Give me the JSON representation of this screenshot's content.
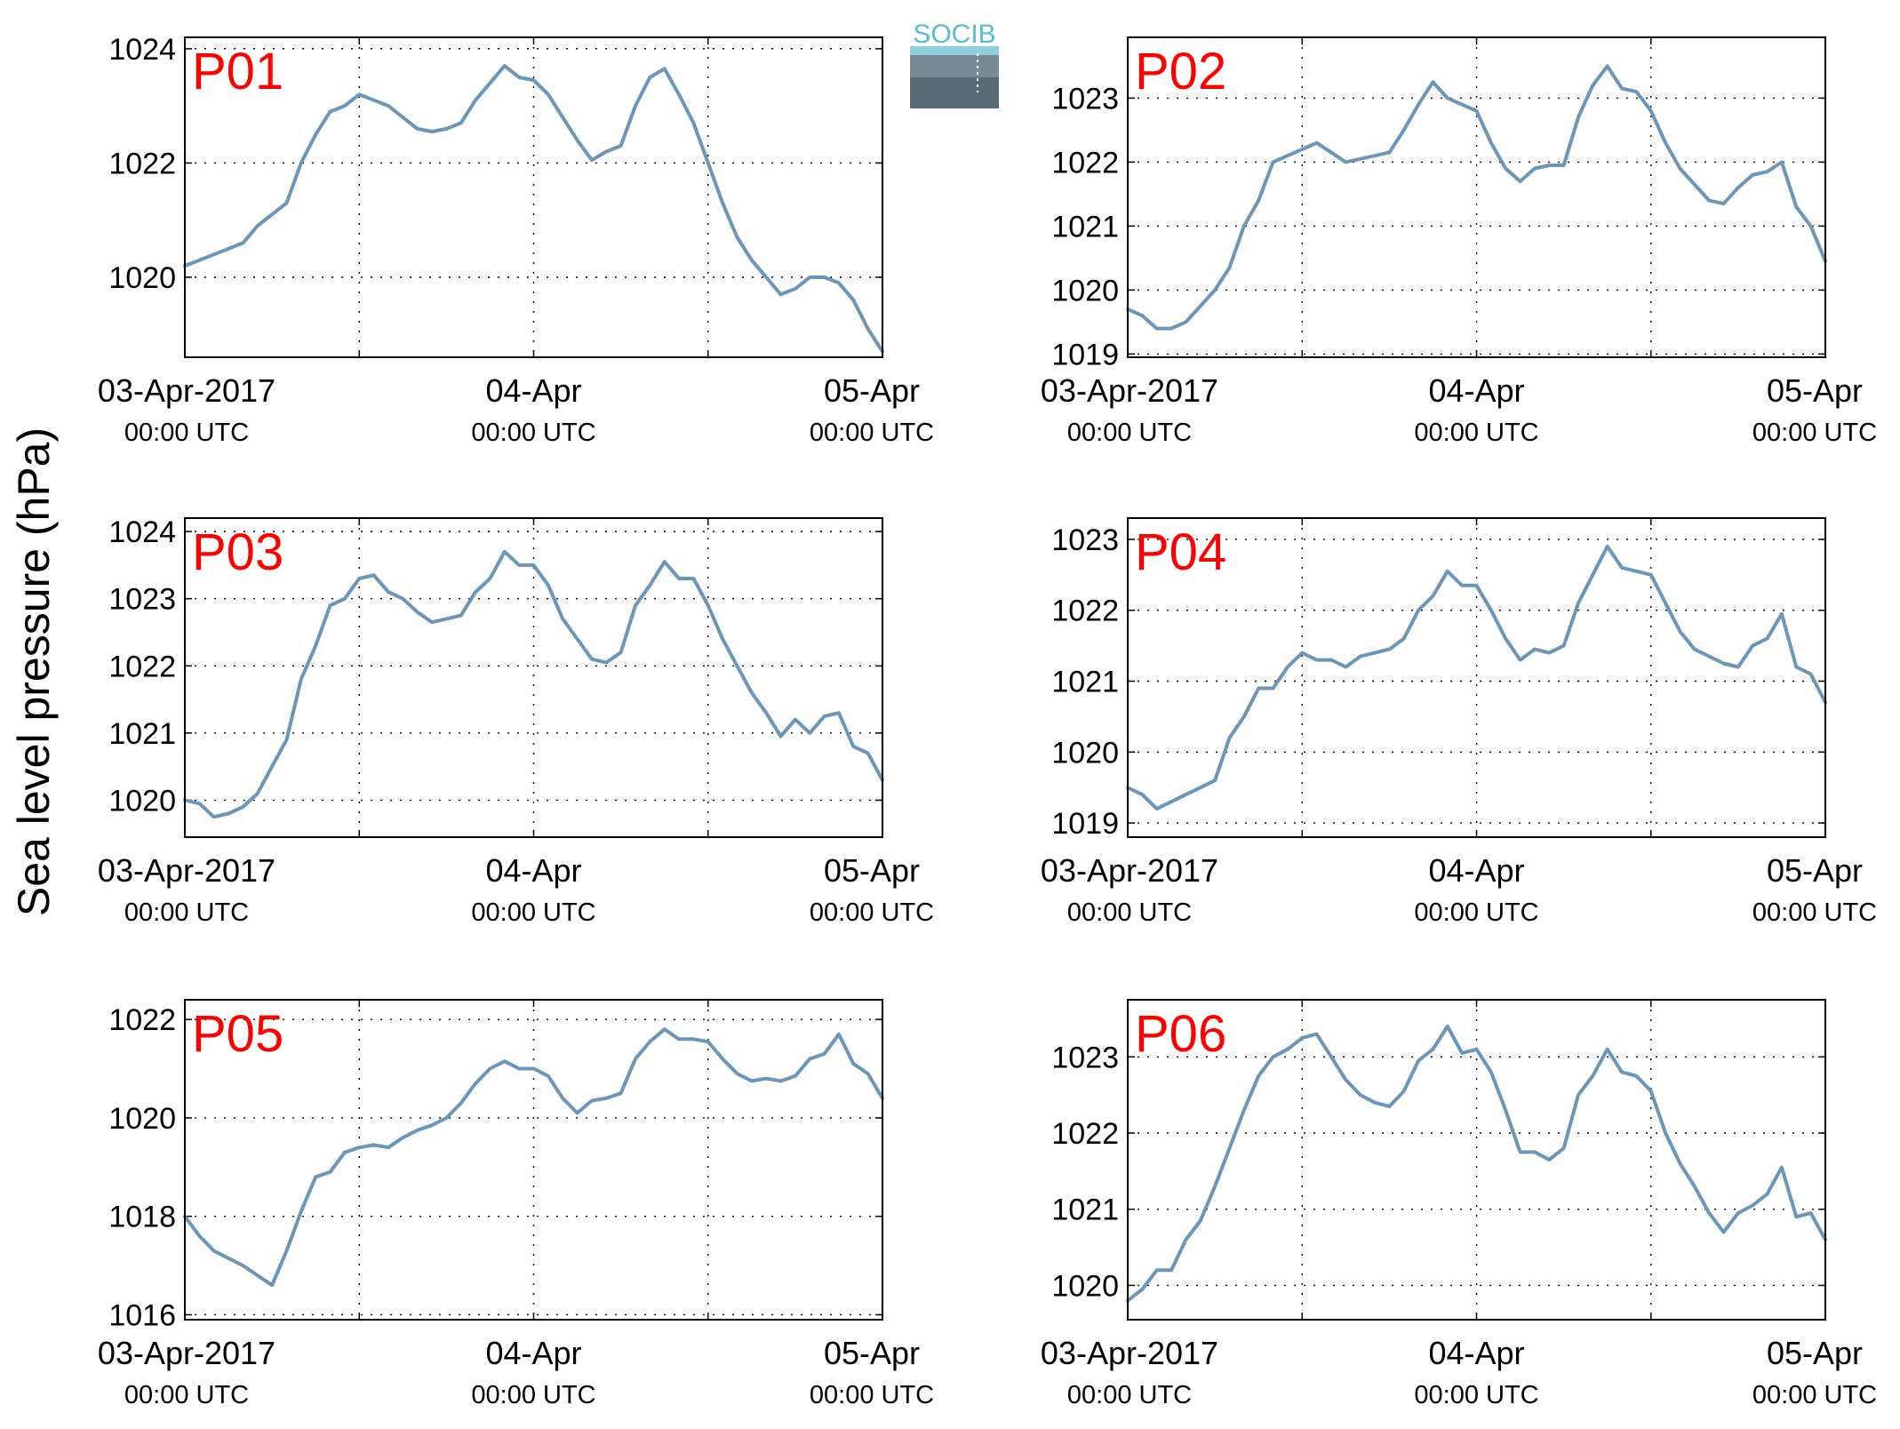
{
  "figure": {
    "ylabel": "Sea level pressure (hPa)",
    "logo_text": "SOCIB",
    "line_color": "#6b96b8",
    "title_color": "#ff0000"
  },
  "x_axis": {
    "ticks": [
      {
        "date": "03-Apr-2017",
        "time": "00:00 UTC"
      },
      {
        "date": "04-Apr",
        "time": "00:00 UTC"
      },
      {
        "date": "05-Apr",
        "time": "00:00 UTC"
      }
    ],
    "xlim_hours": [
      0,
      48
    ],
    "grid_hours": [
      12,
      24,
      36
    ]
  },
  "chart_data": [
    {
      "type": "line",
      "title": "P01",
      "xlabel": "",
      "ylabel": "Sea level pressure (hPa)",
      "ylim": [
        1018.6,
        1024.2
      ],
      "yticks": [
        1020,
        1022,
        1024
      ],
      "grid": true,
      "series": [
        {
          "x": [
            0,
            1,
            2,
            3,
            4,
            5,
            6,
            7,
            8,
            9,
            10,
            11,
            12,
            13,
            14,
            15,
            16,
            17,
            18,
            19,
            20,
            21,
            22,
            23,
            24,
            25,
            26,
            27,
            28,
            29,
            30,
            31,
            32,
            33,
            34,
            35,
            36,
            37,
            38,
            39,
            40,
            41,
            42,
            43,
            44,
            45,
            46,
            47,
            48
          ],
          "y": [
            1020.2,
            1020.3,
            1020.4,
            1020.5,
            1020.6,
            1020.9,
            1021.1,
            1021.3,
            1022.0,
            1022.5,
            1022.9,
            1023.0,
            1023.2,
            1023.1,
            1023.0,
            1022.8,
            1022.6,
            1022.55,
            1022.6,
            1022.7,
            1023.1,
            1023.4,
            1023.7,
            1023.5,
            1023.45,
            1023.2,
            1022.8,
            1022.4,
            1022.05,
            1022.2,
            1022.3,
            1023.0,
            1023.5,
            1023.65,
            1023.2,
            1022.7,
            1022.0,
            1021.3,
            1020.7,
            1020.3,
            1020.0,
            1019.7,
            1019.8,
            1020.0,
            1020.0,
            1019.9,
            1019.6,
            1019.1,
            1018.7
          ]
        }
      ]
    },
    {
      "type": "line",
      "title": "P02",
      "xlabel": "",
      "ylabel": "Sea level pressure (hPa)",
      "ylim": [
        1018.95,
        1023.95
      ],
      "yticks": [
        1019,
        1020,
        1021,
        1022,
        1023
      ],
      "grid": true,
      "series": [
        {
          "x": [
            0,
            1,
            2,
            3,
            4,
            5,
            6,
            7,
            8,
            9,
            10,
            11,
            12,
            13,
            14,
            15,
            16,
            17,
            18,
            19,
            20,
            21,
            22,
            23,
            24,
            25,
            26,
            27,
            28,
            29,
            30,
            31,
            32,
            33,
            34,
            35,
            36,
            37,
            38,
            39,
            40,
            41,
            42,
            43,
            44,
            45,
            46,
            47,
            48
          ],
          "y": [
            1019.7,
            1019.6,
            1019.4,
            1019.4,
            1019.5,
            1019.75,
            1020.0,
            1020.35,
            1021.0,
            1021.4,
            1022.0,
            1022.1,
            1022.2,
            1022.3,
            1022.15,
            1022.0,
            1022.05,
            1022.1,
            1022.15,
            1022.5,
            1022.9,
            1023.25,
            1023.0,
            1022.9,
            1022.8,
            1022.3,
            1021.9,
            1021.7,
            1021.9,
            1021.95,
            1021.95,
            1022.7,
            1023.2,
            1023.5,
            1023.15,
            1023.1,
            1022.8,
            1022.3,
            1021.9,
            1021.65,
            1021.4,
            1021.35,
            1021.6,
            1021.8,
            1021.85,
            1022.0,
            1021.3,
            1021.0,
            1020.45
          ]
        }
      ]
    },
    {
      "type": "line",
      "title": "P03",
      "xlabel": "",
      "ylabel": "Sea level pressure (hPa)",
      "ylim": [
        1019.45,
        1024.2
      ],
      "yticks": [
        1020,
        1021,
        1022,
        1023,
        1024
      ],
      "grid": true,
      "series": [
        {
          "x": [
            0,
            1,
            2,
            3,
            4,
            5,
            6,
            7,
            8,
            9,
            10,
            11,
            12,
            13,
            14,
            15,
            16,
            17,
            18,
            19,
            20,
            21,
            22,
            23,
            24,
            25,
            26,
            27,
            28,
            29,
            30,
            31,
            32,
            33,
            34,
            35,
            36,
            37,
            38,
            39,
            40,
            41,
            42,
            43,
            44,
            45,
            46,
            47,
            48
          ],
          "y": [
            1020.0,
            1019.95,
            1019.75,
            1019.8,
            1019.9,
            1020.1,
            1020.5,
            1020.9,
            1021.8,
            1022.3,
            1022.9,
            1023.0,
            1023.3,
            1023.35,
            1023.1,
            1023.0,
            1022.8,
            1022.65,
            1022.7,
            1022.75,
            1023.1,
            1023.3,
            1023.7,
            1023.5,
            1023.5,
            1023.2,
            1022.7,
            1022.4,
            1022.1,
            1022.05,
            1022.2,
            1022.9,
            1023.2,
            1023.55,
            1023.3,
            1023.3,
            1022.9,
            1022.4,
            1022.0,
            1021.6,
            1021.3,
            1020.95,
            1021.2,
            1021.0,
            1021.25,
            1021.3,
            1020.8,
            1020.7,
            1020.3
          ]
        }
      ]
    },
    {
      "type": "line",
      "title": "P04",
      "xlabel": "",
      "ylabel": "Sea level pressure (hPa)",
      "ylim": [
        1018.8,
        1023.3
      ],
      "yticks": [
        1019,
        1020,
        1021,
        1022,
        1023
      ],
      "grid": true,
      "series": [
        {
          "x": [
            0,
            1,
            2,
            3,
            4,
            5,
            6,
            7,
            8,
            9,
            10,
            11,
            12,
            13,
            14,
            15,
            16,
            17,
            18,
            19,
            20,
            21,
            22,
            23,
            24,
            25,
            26,
            27,
            28,
            29,
            30,
            31,
            32,
            33,
            34,
            35,
            36,
            37,
            38,
            39,
            40,
            41,
            42,
            43,
            44,
            45,
            46,
            47,
            48
          ],
          "y": [
            1019.5,
            1019.4,
            1019.2,
            1019.3,
            1019.4,
            1019.5,
            1019.6,
            1020.2,
            1020.5,
            1020.9,
            1020.9,
            1021.2,
            1021.4,
            1021.3,
            1021.3,
            1021.2,
            1021.35,
            1021.4,
            1021.45,
            1021.6,
            1022.0,
            1022.2,
            1022.55,
            1022.35,
            1022.35,
            1022.0,
            1021.6,
            1021.3,
            1021.45,
            1021.4,
            1021.5,
            1022.1,
            1022.5,
            1022.9,
            1022.6,
            1022.55,
            1022.5,
            1022.1,
            1021.7,
            1021.45,
            1021.35,
            1021.25,
            1021.2,
            1021.5,
            1021.6,
            1021.95,
            1021.2,
            1021.1,
            1020.7
          ]
        }
      ]
    },
    {
      "type": "line",
      "title": "P05",
      "xlabel": "",
      "ylabel": "Sea level pressure (hPa)",
      "ylim": [
        1015.9,
        1022.4
      ],
      "yticks": [
        1016,
        1018,
        1020,
        1022
      ],
      "grid": true,
      "series": [
        {
          "x": [
            0,
            1,
            2,
            3,
            4,
            5,
            6,
            7,
            8,
            9,
            10,
            11,
            12,
            13,
            14,
            15,
            16,
            17,
            18,
            19,
            20,
            21,
            22,
            23,
            24,
            25,
            26,
            27,
            28,
            29,
            30,
            31,
            32,
            33,
            34,
            35,
            36,
            37,
            38,
            39,
            40,
            41,
            42,
            43,
            44,
            45,
            46,
            47,
            48
          ],
          "y": [
            1018.0,
            1017.6,
            1017.3,
            1017.15,
            1017.0,
            1016.8,
            1016.6,
            1017.3,
            1018.1,
            1018.8,
            1018.9,
            1019.3,
            1019.4,
            1019.45,
            1019.4,
            1019.6,
            1019.75,
            1019.85,
            1020.0,
            1020.3,
            1020.7,
            1021.0,
            1021.15,
            1021.0,
            1021.0,
            1020.85,
            1020.4,
            1020.1,
            1020.35,
            1020.4,
            1020.5,
            1021.2,
            1021.55,
            1021.8,
            1021.6,
            1021.6,
            1021.55,
            1021.2,
            1020.9,
            1020.75,
            1020.8,
            1020.75,
            1020.85,
            1021.2,
            1021.3,
            1021.7,
            1021.1,
            1020.9,
            1020.4
          ]
        }
      ]
    },
    {
      "type": "line",
      "title": "P06",
      "xlabel": "",
      "ylabel": "Sea level pressure (hPa)",
      "ylim": [
        1019.55,
        1023.75
      ],
      "yticks": [
        1020,
        1021,
        1022,
        1023
      ],
      "grid": true,
      "series": [
        {
          "x": [
            0,
            1,
            2,
            3,
            4,
            5,
            6,
            7,
            8,
            9,
            10,
            11,
            12,
            13,
            14,
            15,
            16,
            17,
            18,
            19,
            20,
            21,
            22,
            23,
            24,
            25,
            26,
            27,
            28,
            29,
            30,
            31,
            32,
            33,
            34,
            35,
            36,
            37,
            38,
            39,
            40,
            41,
            42,
            43,
            44,
            45,
            46,
            47,
            48
          ],
          "y": [
            1019.8,
            1019.95,
            1020.2,
            1020.2,
            1020.6,
            1020.85,
            1021.3,
            1021.8,
            1022.3,
            1022.75,
            1023.0,
            1023.1,
            1023.25,
            1023.3,
            1023.0,
            1022.7,
            1022.5,
            1022.4,
            1022.35,
            1022.55,
            1022.95,
            1023.1,
            1023.4,
            1023.05,
            1023.1,
            1022.8,
            1022.3,
            1021.75,
            1021.75,
            1021.65,
            1021.8,
            1022.5,
            1022.75,
            1023.1,
            1022.8,
            1022.75,
            1022.55,
            1022.0,
            1021.6,
            1021.3,
            1020.95,
            1020.7,
            1020.95,
            1021.05,
            1021.2,
            1021.55,
            1020.9,
            1020.95,
            1020.6
          ]
        }
      ]
    }
  ]
}
